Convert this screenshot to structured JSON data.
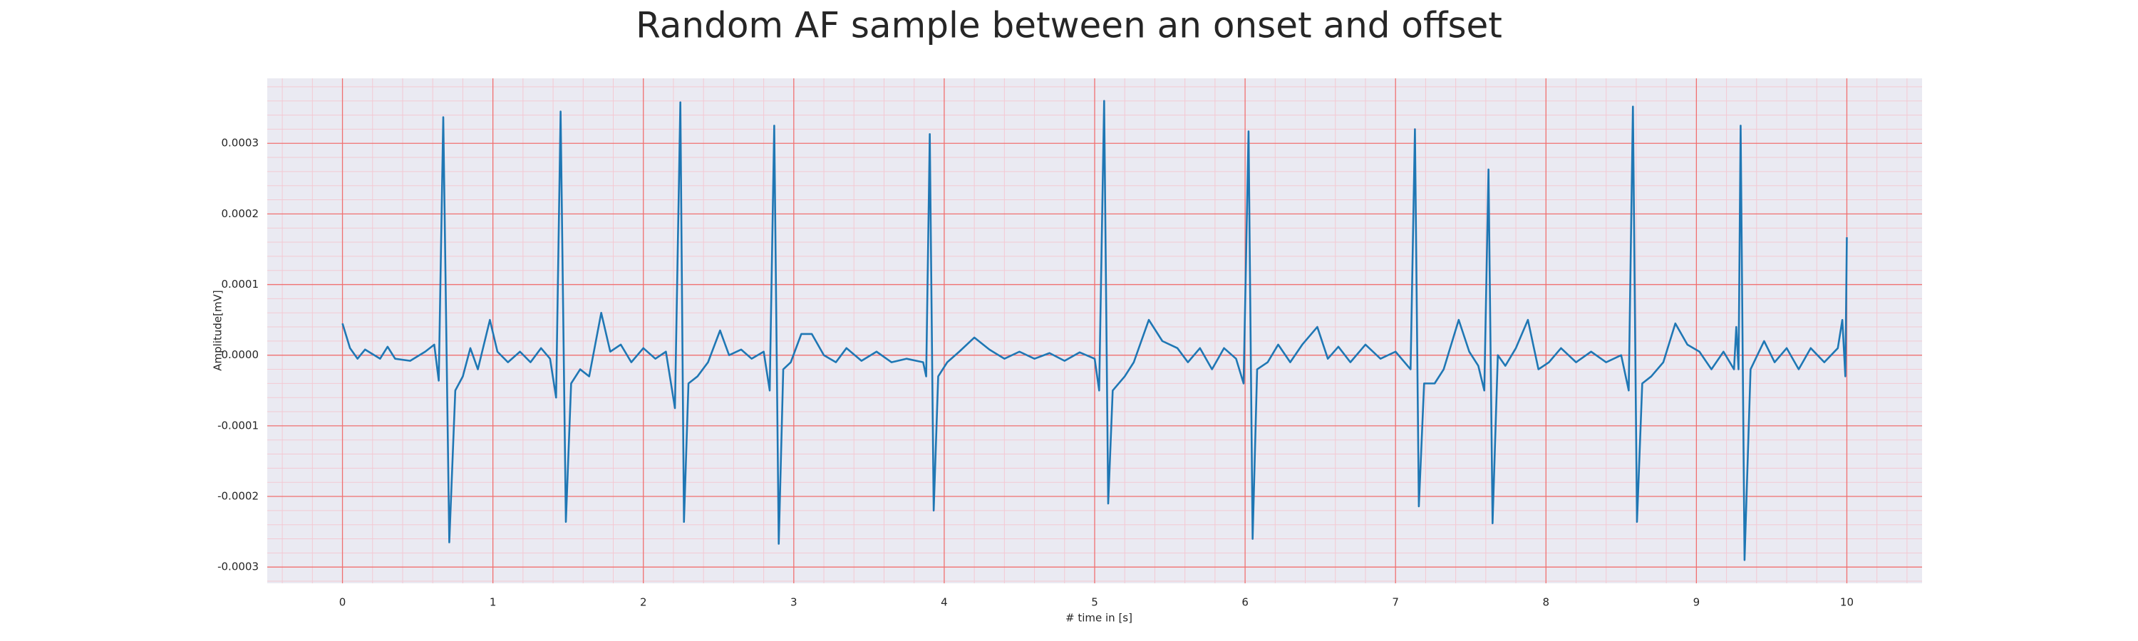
{
  "chart_data": {
    "type": "line",
    "title": "Random AF sample between an onset and offset",
    "x_label": "# time in [s]",
    "y_label": "Amplitude[mV]",
    "x": [
      0,
      0.05,
      0.1,
      0.15,
      0.25,
      0.3,
      0.35,
      0.45,
      0.55,
      0.61,
      0.64,
      0.67,
      0.71,
      0.75,
      0.8,
      0.85,
      0.9,
      0.98,
      1.03,
      1.1,
      1.18,
      1.25,
      1.32,
      1.38,
      1.42,
      1.45,
      1.485,
      1.52,
      1.58,
      1.64,
      1.72,
      1.78,
      1.85,
      1.92,
      2,
      2.08,
      2.15,
      2.21,
      2.246,
      2.27,
      2.3,
      2.36,
      2.43,
      2.51,
      2.57,
      2.65,
      2.72,
      2.8,
      2.84,
      2.87,
      2.9,
      2.93,
      2.98,
      3.05,
      3.12,
      3.2,
      3.28,
      3.35,
      3.45,
      3.55,
      3.65,
      3.75,
      3.86,
      3.88,
      3.904,
      3.93,
      3.96,
      4.02,
      4.1,
      4.2,
      4.3,
      4.4,
      4.5,
      4.6,
      4.7,
      4.8,
      4.9,
      5,
      5.03,
      5.063,
      5.09,
      5.12,
      5.2,
      5.26,
      5.36,
      5.45,
      5.55,
      5.62,
      5.7,
      5.78,
      5.86,
      5.94,
      5.99,
      6.023,
      6.05,
      6.08,
      6.15,
      6.22,
      6.3,
      6.38,
      6.48,
      6.55,
      6.62,
      6.7,
      6.8,
      6.9,
      7,
      7.1,
      7.129,
      7.155,
      7.19,
      7.26,
      7.32,
      7.42,
      7.49,
      7.55,
      7.59,
      7.618,
      7.645,
      7.68,
      7.73,
      7.8,
      7.88,
      7.95,
      8.02,
      8.1,
      8.2,
      8.3,
      8.4,
      8.5,
      8.55,
      8.578,
      8.605,
      8.64,
      8.7,
      8.78,
      8.86,
      8.94,
      9.02,
      9.1,
      9.18,
      9.25,
      9.265,
      9.28,
      9.294,
      9.32,
      9.36,
      9.45,
      9.52,
      9.6,
      9.68,
      9.76,
      9.85,
      9.94,
      9.97,
      9.99,
      10
    ],
    "values": [
      4.5e-05,
      1e-05,
      -5e-06,
      8e-06,
      -5e-06,
      1.2e-05,
      -5e-06,
      -8e-06,
      5e-06,
      1.5e-05,
      -3.6e-05,
      0.000337,
      -0.000265,
      -5e-05,
      -3e-05,
      1e-05,
      -2e-05,
      5e-05,
      5e-06,
      -1e-05,
      5e-06,
      -1e-05,
      1e-05,
      -5e-06,
      -6e-05,
      0.000345,
      -0.000236,
      -4e-05,
      -2e-05,
      -3e-05,
      6e-05,
      5e-06,
      1.5e-05,
      -1e-05,
      1e-05,
      -5e-06,
      5e-06,
      -7.5e-05,
      0.000358,
      -0.000236,
      -4e-05,
      -3e-05,
      -1e-05,
      3.5e-05,
      0,
      8e-06,
      -5e-06,
      5e-06,
      -5e-05,
      0.000325,
      -0.000267,
      -2e-05,
      -1e-05,
      3e-05,
      3e-05,
      0,
      -1e-05,
      1e-05,
      -8e-06,
      5e-06,
      -1e-05,
      -5e-06,
      -1e-05,
      -3e-05,
      0.000313,
      -0.00022,
      -3e-05,
      -1e-05,
      5e-06,
      2.5e-05,
      8e-06,
      -5e-06,
      5e-06,
      -5e-06,
      3e-06,
      -8e-06,
      4e-06,
      -5e-06,
      -5e-05,
      0.00036,
      -0.00021,
      -5e-05,
      -3e-05,
      -1e-05,
      5e-05,
      2e-05,
      1e-05,
      -1e-05,
      1e-05,
      -2e-05,
      1e-05,
      -5e-06,
      -4e-05,
      0.000317,
      -0.00026,
      -2e-05,
      -1e-05,
      1.5e-05,
      -1e-05,
      1.5e-05,
      4e-05,
      -5e-06,
      1.2e-05,
      -1e-05,
      1.5e-05,
      -5e-06,
      5e-06,
      -2e-05,
      0.00032,
      -0.000214,
      -4e-05,
      -4e-05,
      -2e-05,
      5e-05,
      5e-06,
      -1.5e-05,
      -5e-05,
      0.000263,
      -0.000238,
      0,
      -1.5e-05,
      1e-05,
      5e-05,
      -2e-05,
      -1e-05,
      1e-05,
      -1e-05,
      5e-06,
      -1e-05,
      0,
      -5e-05,
      0.000352,
      -0.000236,
      -4e-05,
      -3e-05,
      -1e-05,
      4.5e-05,
      1.5e-05,
      5e-06,
      -2e-05,
      5e-06,
      -2e-05,
      4e-05,
      -2e-05,
      0.000325,
      -0.00029,
      -2e-05,
      2e-05,
      -1e-05,
      1e-05,
      -2e-05,
      1e-05,
      -1e-05,
      1e-05,
      5e-05,
      -3e-05,
      0.000167
    ],
    "color": "#1f77b4",
    "xlim": [
      -0.5,
      10.5
    ],
    "xticks": [
      0,
      1,
      2,
      3,
      4,
      5,
      6,
      7,
      8,
      9,
      10
    ],
    "ylim": [
      -0.000323,
      0.000392
    ],
    "yticks": [
      -0.0003,
      -0.0002,
      -0.0001,
      {
        "value": 0,
        "label": "0.0000"
      },
      0.0001,
      0.0002,
      0.0003
    ],
    "grid": true,
    "minor_grid": true
  }
}
